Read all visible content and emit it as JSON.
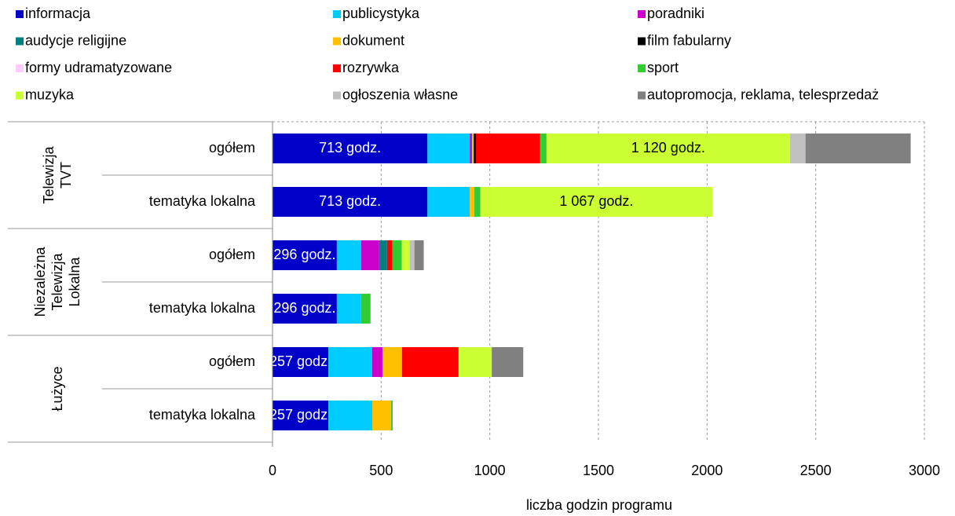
{
  "chart_data": {
    "type": "stacked-barh",
    "x_label": "liczba godzin programu",
    "xlim": [
      0,
      3000
    ],
    "xticks": [
      0,
      500,
      1000,
      1500,
      2000,
      2500,
      3000
    ],
    "grid": true,
    "legend": "top",
    "groups": [
      {
        "name": "Telewizja TVT",
        "categories": [
          "ogółem",
          "tematyka lokalna"
        ]
      },
      {
        "name": "Niezależna Telewizja Lokalna",
        "categories": [
          "ogółem",
          "tematyka lokalna"
        ]
      },
      {
        "name": "Łużyce",
        "categories": [
          "ogółem",
          "tematyka lokalna"
        ]
      }
    ],
    "series": [
      {
        "name": "informacja",
        "color": "#0000c8",
        "values": [
          713,
          713,
          296,
          296,
          257,
          257
        ],
        "value_labels": [
          "713 godz.",
          "713 godz.",
          "296 godz.",
          "296 godz.",
          "257 godz.",
          "257 godz."
        ]
      },
      {
        "name": "publicystyka",
        "color": "#00ccff",
        "values": [
          195,
          195,
          112,
          112,
          202,
          202
        ]
      },
      {
        "name": "poradniki",
        "color": "#cc00cc",
        "values": [
          8,
          0,
          83,
          0,
          47,
          0
        ]
      },
      {
        "name": "audycje religijne",
        "color": "#008080",
        "values": [
          3,
          0,
          36,
          0,
          0,
          0
        ]
      },
      {
        "name": "dokument",
        "color": "#ffc000",
        "values": [
          7,
          20,
          0,
          0,
          90,
          87
        ]
      },
      {
        "name": "film fabularny",
        "color": "#000000",
        "values": [
          10,
          0,
          0,
          0,
          0,
          0
        ]
      },
      {
        "name": "formy udramatyzowane",
        "color": "#ffccff",
        "values": [
          0,
          0,
          0,
          0,
          0,
          0
        ]
      },
      {
        "name": "rozrywka",
        "color": "#ff0000",
        "values": [
          296,
          0,
          25,
          0,
          260,
          0
        ]
      },
      {
        "name": "sport",
        "color": "#33cc33",
        "values": [
          29,
          29,
          43,
          43,
          1,
          7
        ]
      },
      {
        "name": "muzyka",
        "color": "#ccff33",
        "values": [
          1120,
          1067,
          36,
          0,
          152,
          0
        ],
        "value_labels": [
          "1 120 godz.",
          "1 067 godz.",
          null,
          null,
          null,
          null
        ]
      },
      {
        "name": "ogłoszenia własne",
        "color": "#c0c0c0",
        "values": [
          72,
          0,
          22,
          0,
          0,
          0
        ]
      },
      {
        "name": "autopromocja, reklama, telesprzedaż",
        "color": "#808080",
        "values": [
          484,
          0,
          43,
          0,
          145,
          0
        ]
      }
    ]
  }
}
